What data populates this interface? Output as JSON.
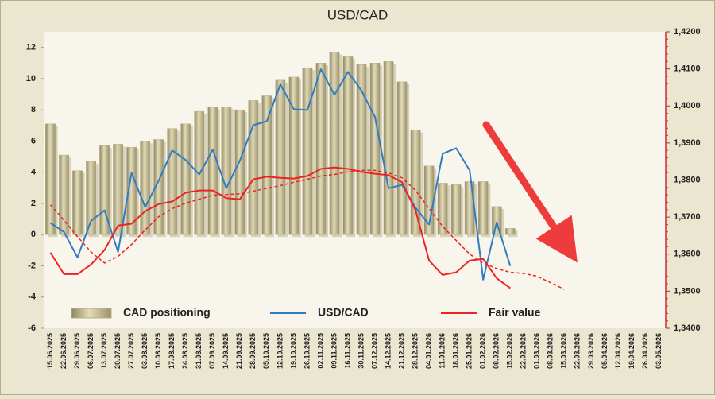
{
  "chart_data": {
    "type": "combo",
    "title": "USD/CAD",
    "categories": [
      "15.06.2025",
      "22.06.2025",
      "29.06.2025",
      "06.07.2025",
      "13.07.2025",
      "20.07.2025",
      "27.07.2025",
      "03.08.2025",
      "10.08.2025",
      "17.08.2025",
      "24.08.2025",
      "31.08.2025",
      "07.09.2025",
      "14.09.2025",
      "21.09.2025",
      "28.09.2025",
      "05.10.2025",
      "12.10.2025",
      "19.10.2025",
      "26.10.2025",
      "02.11.2025",
      "09.11.2025",
      "16.11.2025",
      "30.11.2025",
      "07.12.2025",
      "14.12.2025",
      "21.12.2025",
      "28.12.2025",
      "04.01.2026",
      "11.01.2026",
      "18.01.2026",
      "25.01.2026",
      "01.02.2026",
      "08.02.2026",
      "15.02.2026",
      "22.02.2026",
      "01.03.2026",
      "08.03.2026",
      "15.03.2026",
      "22.03.2026",
      "29.03.2026",
      "05.04.2026",
      "12.04.2026",
      "19.04.2026",
      "26.04.2026",
      "03.05.2026"
    ],
    "series": [
      {
        "name": "CAD positioning",
        "type": "bar",
        "color": "#b8ae82",
        "axis": "y",
        "values": [
          7.1,
          5.1,
          4.1,
          4.7,
          5.7,
          5.8,
          5.6,
          6.0,
          6.1,
          6.8,
          7.1,
          7.9,
          8.2,
          8.2,
          8.0,
          8.6,
          8.9,
          9.9,
          10.1,
          10.7,
          11.0,
          11.7,
          11.4,
          10.9,
          11.0,
          11.1,
          9.8,
          6.7,
          4.4,
          3.3,
          3.2,
          3.4,
          3.4,
          1.8,
          0.4,
          null,
          null,
          null,
          null,
          null,
          null,
          null,
          null,
          null,
          null,
          null
        ]
      },
      {
        "name": "USD/CAD",
        "type": "line",
        "color": "#2e7cc4",
        "axis": "y2",
        "values": [
          1.3684,
          1.366,
          1.3591,
          1.369,
          1.3718,
          1.3606,
          1.3819,
          1.3727,
          1.3798,
          1.388,
          1.3854,
          1.3815,
          1.3882,
          1.3778,
          1.3852,
          1.3948,
          1.3959,
          1.4058,
          1.3991,
          1.3989,
          1.4099,
          1.403,
          1.4092,
          1.4041,
          1.397,
          1.3778,
          1.3787,
          1.3725,
          1.368,
          1.3871,
          1.3886,
          1.3826,
          1.3531,
          1.3686,
          1.3568,
          null,
          null,
          null,
          null,
          null,
          null,
          null,
          null,
          null,
          null,
          null
        ]
      },
      {
        "name": "Fair value",
        "type": "line",
        "color": "#ee2222",
        "axis": "y2",
        "values": [
          1.3604,
          1.3546,
          1.3546,
          1.3572,
          1.3611,
          1.3677,
          1.3682,
          1.3716,
          1.3735,
          1.3742,
          1.3766,
          1.3772,
          1.3772,
          1.3751,
          1.3748,
          1.3802,
          1.3809,
          1.3806,
          1.3804,
          1.3811,
          1.383,
          1.3834,
          1.383,
          1.3822,
          1.3817,
          1.3813,
          1.3794,
          1.3718,
          1.3583,
          1.3544,
          1.3551,
          1.3583,
          1.3587,
          1.3535,
          1.3508,
          null,
          null,
          null,
          null,
          null,
          null,
          null,
          null,
          null,
          null,
          null
        ]
      },
      {
        "type": "line",
        "color": "#ee2222",
        "dashed": true,
        "axis": "y2",
        "values": [
          1.3733,
          1.3692,
          1.3647,
          1.3606,
          1.3576,
          1.3594,
          1.3626,
          1.3665,
          1.3701,
          1.3723,
          1.3738,
          1.3748,
          1.3759,
          1.3761,
          1.3763,
          1.377,
          1.3778,
          1.3785,
          1.3794,
          1.3802,
          1.3811,
          1.3815,
          1.3822,
          1.3826,
          1.3826,
          1.3819,
          1.3806,
          1.3772,
          1.3723,
          1.3675,
          1.3637,
          1.36,
          1.3576,
          1.3561,
          1.3551,
          1.3548,
          1.354,
          1.3523,
          1.3505,
          null,
          null,
          null,
          null,
          null,
          null,
          null
        ]
      }
    ],
    "ylim": [
      -6,
      13
    ],
    "yticks": [
      -6,
      -4,
      -2,
      0,
      2,
      4,
      6,
      8,
      10,
      12
    ],
    "y2lim": [
      1.34,
      1.42
    ],
    "y2ticks": [
      {
        "value": 1.34,
        "label": "1,3400"
      },
      {
        "value": 1.35,
        "label": "1,3500"
      },
      {
        "value": 1.36,
        "label": "1,3600"
      },
      {
        "value": 1.37,
        "label": "1,3700"
      },
      {
        "value": 1.38,
        "label": "1,3800"
      },
      {
        "value": 1.39,
        "label": "1,3900"
      },
      {
        "value": 1.4,
        "label": "1,4000"
      },
      {
        "value": 1.41,
        "label": "1,4100"
      },
      {
        "value": 1.42,
        "label": "1,4200"
      }
    ],
    "grid": false,
    "legend": "bottom"
  }
}
